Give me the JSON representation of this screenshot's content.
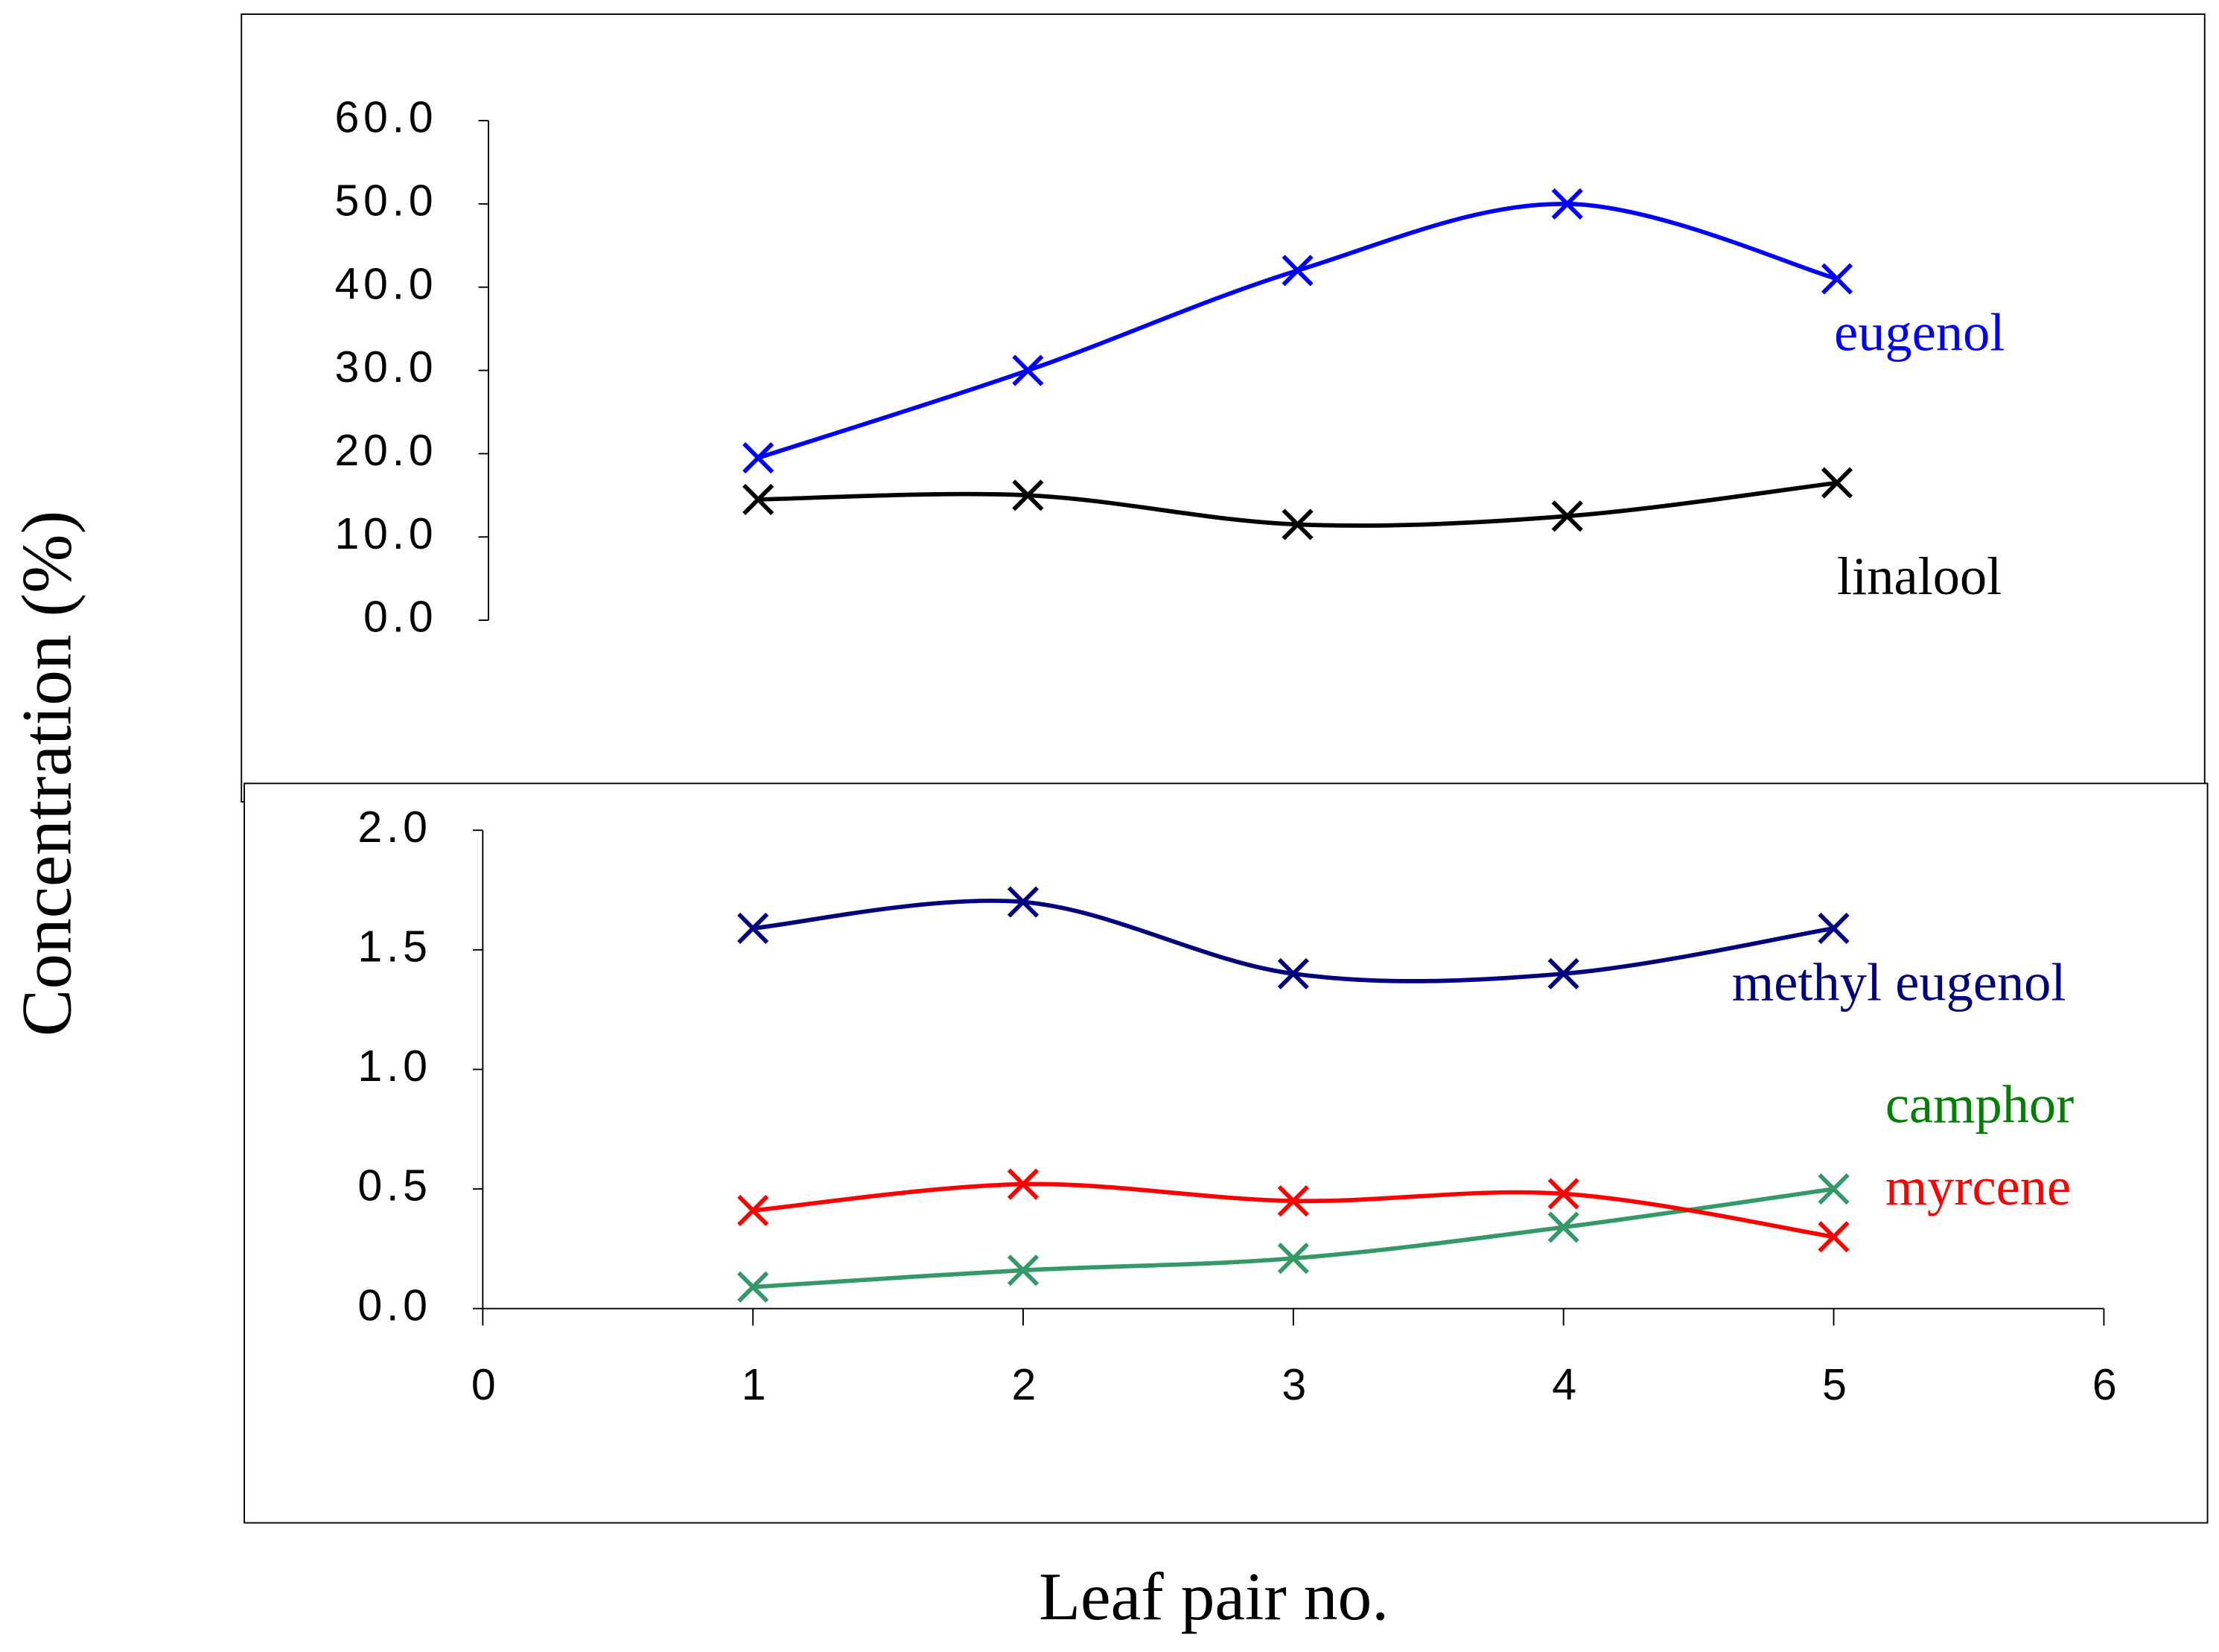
{
  "chart_data": [
    {
      "type": "line",
      "y_label": "Concentration (%)",
      "x": [
        1,
        2,
        3,
        4,
        5
      ],
      "xlim": [
        0,
        6
      ],
      "ylim": [
        0,
        60
      ],
      "yticks": [
        {
          "value": 0,
          "label": "0.0"
        },
        {
          "value": 10,
          "label": "10.0"
        },
        {
          "value": 20,
          "label": "20.0"
        },
        {
          "value": 30,
          "label": "30.0"
        },
        {
          "value": 40,
          "label": "40.0"
        },
        {
          "value": 50,
          "label": "50.0"
        },
        {
          "value": 60,
          "label": "60.0"
        }
      ],
      "series": [
        {
          "name": "eugenol",
          "color": "#0000ff",
          "values": [
            19.5,
            30,
            42,
            50,
            41
          ]
        },
        {
          "name": "linalool",
          "color": "#000000",
          "values": [
            14.5,
            15,
            11.5,
            12.5,
            16.5
          ]
        }
      ]
    },
    {
      "type": "line",
      "x_label": "Leaf pair no.",
      "x": [
        1,
        2,
        3,
        4,
        5
      ],
      "xlim": [
        0,
        6
      ],
      "xticks": [
        0,
        1,
        2,
        3,
        4,
        5,
        6
      ],
      "ylim": [
        0,
        2
      ],
      "yticks": [
        {
          "value": 0,
          "label": "0.0"
        },
        {
          "value": 0.5,
          "label": "0.5"
        },
        {
          "value": 1,
          "label": "1.0"
        },
        {
          "value": 1.5,
          "label": "1.5"
        },
        {
          "value": 2,
          "label": "2.0"
        }
      ],
      "series": [
        {
          "name": "methyl eugenol",
          "color": "#000080",
          "values": [
            1.59,
            1.7,
            1.4,
            1.4,
            1.59
          ]
        },
        {
          "name": "camphor",
          "color": "#339966",
          "label_color": "#008000",
          "values": [
            0.09,
            0.16,
            0.21,
            0.34,
            0.5
          ]
        },
        {
          "name": "myrcene",
          "color": "#ff0000",
          "values": [
            0.41,
            0.52,
            0.45,
            0.48,
            0.3
          ]
        }
      ]
    }
  ]
}
